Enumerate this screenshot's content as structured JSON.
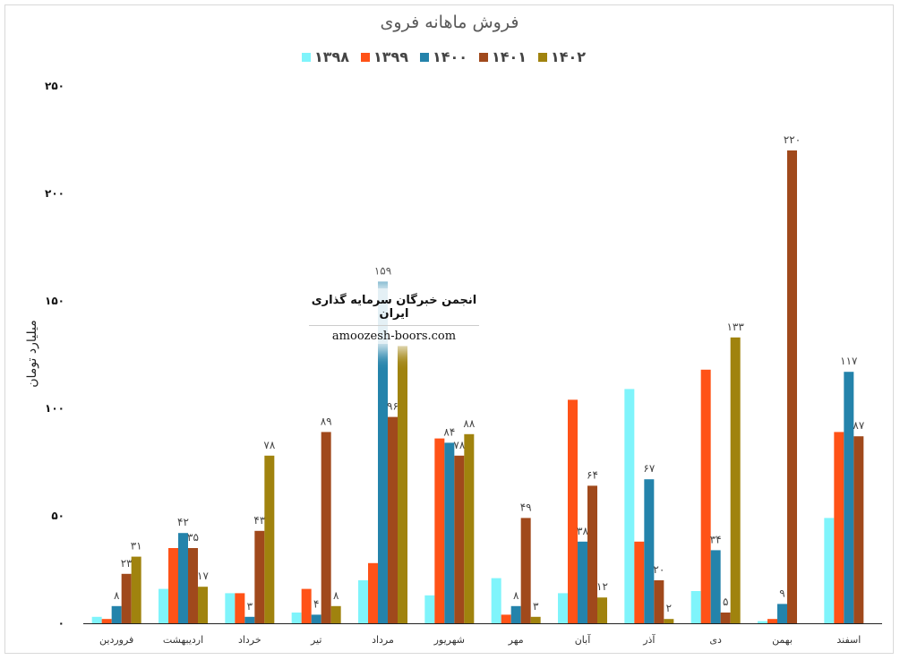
{
  "chart_data": {
    "type": "bar",
    "title": "فروش ماهانه فروی",
    "ylabel": "میلیارد تومان",
    "xlabel": "",
    "ylim": [
      0,
      250
    ],
    "yticks": [
      "۰",
      "۵۰",
      "۱۰۰",
      "۱۵۰",
      "۲۰۰",
      "۲۵۰"
    ],
    "ytick_values": [
      0,
      50,
      100,
      150,
      200,
      250
    ],
    "legend_position": "top",
    "grid": false,
    "categories": [
      "فروردین",
      "اردیبهشت",
      "خرداد",
      "تیر",
      "مرداد",
      "شهریور",
      "مهر",
      "آبان",
      "آذر",
      "دی",
      "بهمن",
      "اسفند"
    ],
    "series": [
      {
        "name": "۱۳۹۸",
        "color": "#7ff4fb",
        "values": [
          3,
          16,
          14,
          5,
          20,
          13,
          21,
          14,
          109,
          15,
          1,
          49
        ],
        "labels": [
          "",
          "",
          "",
          "",
          "",
          "",
          "",
          "",
          "",
          "",
          "",
          ""
        ]
      },
      {
        "name": "۱۳۹۹",
        "color": "#ff5217",
        "values": [
          2,
          35,
          14,
          16,
          28,
          86,
          4,
          104,
          38,
          118,
          2,
          89
        ],
        "labels": [
          "",
          "",
          "",
          "",
          "",
          "",
          "",
          "",
          "",
          "",
          "",
          ""
        ]
      },
      {
        "name": "۱۴۰۰",
        "color": "#2483ab",
        "values": [
          8,
          42,
          3,
          4,
          159,
          84,
          8,
          38,
          67,
          34,
          9,
          117
        ],
        "labels": [
          "۸",
          "۴۲",
          "۳",
          "۴",
          "۱۵۹",
          "۸۴",
          "۸",
          "۳۸",
          "۶۷",
          "۳۴",
          "۹",
          "۱۱۷"
        ]
      },
      {
        "name": "۱۴۰۱",
        "color": "#a0491c",
        "values": [
          23,
          35,
          43,
          89,
          96,
          78,
          49,
          64,
          20,
          5,
          220,
          87
        ],
        "labels": [
          "۲۳",
          "۳۵",
          "۴۳",
          "۸۹",
          "۹۶",
          "۷۸",
          "۴۹",
          "۶۴",
          "۲۰",
          "۵",
          "۲۲۰",
          "۸۷"
        ]
      },
      {
        "name": "۱۴۰۲",
        "color": "#a0830e",
        "values": [
          31,
          17,
          78,
          8,
          129,
          88,
          3,
          12,
          2,
          133,
          0,
          0
        ],
        "labels": [
          "۳۱",
          "۱۷",
          "۷۸",
          "۸",
          "",
          "۸۸",
          "۳",
          "۱۲",
          "۲",
          "۱۳۳",
          "",
          ""
        ]
      }
    ]
  },
  "watermark": {
    "title": "انجمن خبرگان سرمایه گذاری ایران",
    "url": "amoozesh-boors.com"
  }
}
